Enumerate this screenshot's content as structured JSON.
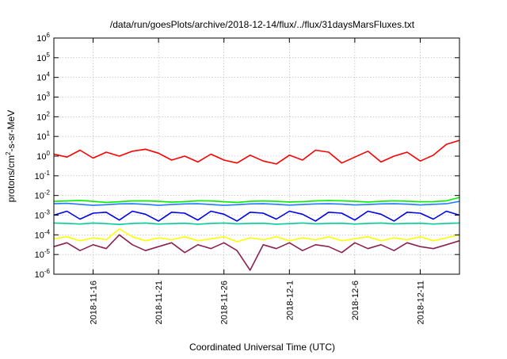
{
  "chart_data": {
    "type": "line",
    "title": "/data/run/goesPlots/archive/2018-12-14/flux/../flux/31daysMarsFluxes.txt",
    "xlabel": "Coordinated Universal Time (UTC)",
    "ylabel": "protons/cm2-s-sr-MeV",
    "ylabel_parts": {
      "pre": "protons/cm",
      "sup": "2",
      "post": "-s-sr-MeV"
    },
    "yscale": "log",
    "ylim_exponents": [
      -6,
      6
    ],
    "ytick_exponents": [
      -6,
      -5,
      -4,
      -3,
      -2,
      -1,
      0,
      1,
      2,
      3,
      4,
      5,
      6
    ],
    "ytick_base": "10",
    "xlim": [
      "2018-11-13",
      "2018-12-14"
    ],
    "xtick_labels": [
      "2018-11-16",
      "2018-11-21",
      "2018-11-26",
      "2018-12-1",
      "2018-12-6",
      "2018-12-11"
    ],
    "xtick_dates": [
      "2018-11-16",
      "2018-11-21",
      "2018-11-26",
      "2018-12-01",
      "2018-12-06",
      "2018-12-11"
    ],
    "grid": true,
    "legend": "none",
    "series": [
      {
        "color": "#00ee00",
        "values_log10": [
          -2.3,
          -2.28,
          -2.25,
          -2.3,
          -2.35,
          -2.32,
          -2.28,
          -2.27,
          -2.3,
          -2.34,
          -2.31,
          -2.27,
          -2.28,
          -2.32,
          -2.35,
          -2.3,
          -2.28,
          -2.3,
          -2.33,
          -2.31,
          -2.28,
          -2.26,
          -2.27,
          -2.3,
          -2.33,
          -2.3,
          -2.27,
          -2.29,
          -2.32,
          -2.31,
          -2.27,
          -2.1
        ]
      },
      {
        "color": "#1e7bff",
        "values_log10": [
          -2.42,
          -2.4,
          -2.45,
          -2.5,
          -2.47,
          -2.43,
          -2.42,
          -2.45,
          -2.5,
          -2.46,
          -2.43,
          -2.42,
          -2.46,
          -2.5,
          -2.47,
          -2.43,
          -2.42,
          -2.45,
          -2.49,
          -2.46,
          -2.43,
          -2.42,
          -2.44,
          -2.48,
          -2.46,
          -2.43,
          -2.42,
          -2.44,
          -2.48,
          -2.45,
          -2.42,
          -2.3
        ]
      },
      {
        "color": "#0000ee",
        "values_log10": [
          -3.0,
          -2.8,
          -3.2,
          -2.9,
          -2.85,
          -3.25,
          -2.8,
          -2.95,
          -3.3,
          -2.85,
          -2.9,
          -3.25,
          -2.8,
          -2.95,
          -3.3,
          -2.85,
          -2.9,
          -3.2,
          -2.8,
          -2.95,
          -3.3,
          -2.85,
          -2.9,
          -3.25,
          -2.8,
          -2.95,
          -3.3,
          -2.85,
          -2.9,
          -3.2,
          -2.8,
          -3.0
        ]
      },
      {
        "color": "#00cc99",
        "values_log10": [
          -3.4,
          -3.42,
          -3.45,
          -3.4,
          -3.43,
          -3.47,
          -3.42,
          -3.4,
          -3.45,
          -3.43,
          -3.41,
          -3.46,
          -3.42,
          -3.4,
          -3.44,
          -3.42,
          -3.41,
          -3.46,
          -3.43,
          -3.4,
          -3.44,
          -3.42,
          -3.41,
          -3.45,
          -3.42,
          -3.4,
          -3.44,
          -3.42,
          -3.41,
          -3.45,
          -3.42,
          -3.4
        ]
      },
      {
        "color": "#ff0000",
        "values_log10": [
          0.1,
          -0.05,
          0.3,
          -0.1,
          0.2,
          0.0,
          0.25,
          0.35,
          0.15,
          -0.2,
          0.0,
          -0.3,
          0.1,
          -0.2,
          -0.35,
          0.05,
          -0.25,
          -0.4,
          0.05,
          -0.2,
          0.3,
          0.2,
          -0.35,
          -0.05,
          0.25,
          -0.3,
          0.0,
          0.2,
          -0.25,
          0.05,
          0.6,
          0.8
        ]
      },
      {
        "color": "#ffff00",
        "values_log10": [
          -4.2,
          -4.1,
          -4.3,
          -4.15,
          -4.25,
          -3.7,
          -4.1,
          -4.3,
          -4.15,
          -4.25,
          -4.1,
          -4.3,
          -4.2,
          -4.1,
          -4.35,
          -4.15,
          -4.25,
          -4.1,
          -4.3,
          -4.15,
          -4.25,
          -4.1,
          -4.3,
          -4.2,
          -4.1,
          -4.3,
          -4.15,
          -4.25,
          -4.1,
          -4.3,
          -4.15,
          -4.0
        ]
      },
      {
        "color": "#8b2252",
        "values_log10": [
          -4.6,
          -4.4,
          -4.8,
          -4.5,
          -4.7,
          -4.0,
          -4.5,
          -4.8,
          -4.6,
          -4.4,
          -4.9,
          -4.5,
          -4.7,
          -4.4,
          -4.8,
          -5.8,
          -4.5,
          -4.7,
          -4.4,
          -4.8,
          -4.5,
          -4.6,
          -4.9,
          -4.4,
          -4.7,
          -4.5,
          -4.8,
          -4.4,
          -4.6,
          -4.7,
          -4.5,
          -4.3
        ]
      }
    ]
  }
}
